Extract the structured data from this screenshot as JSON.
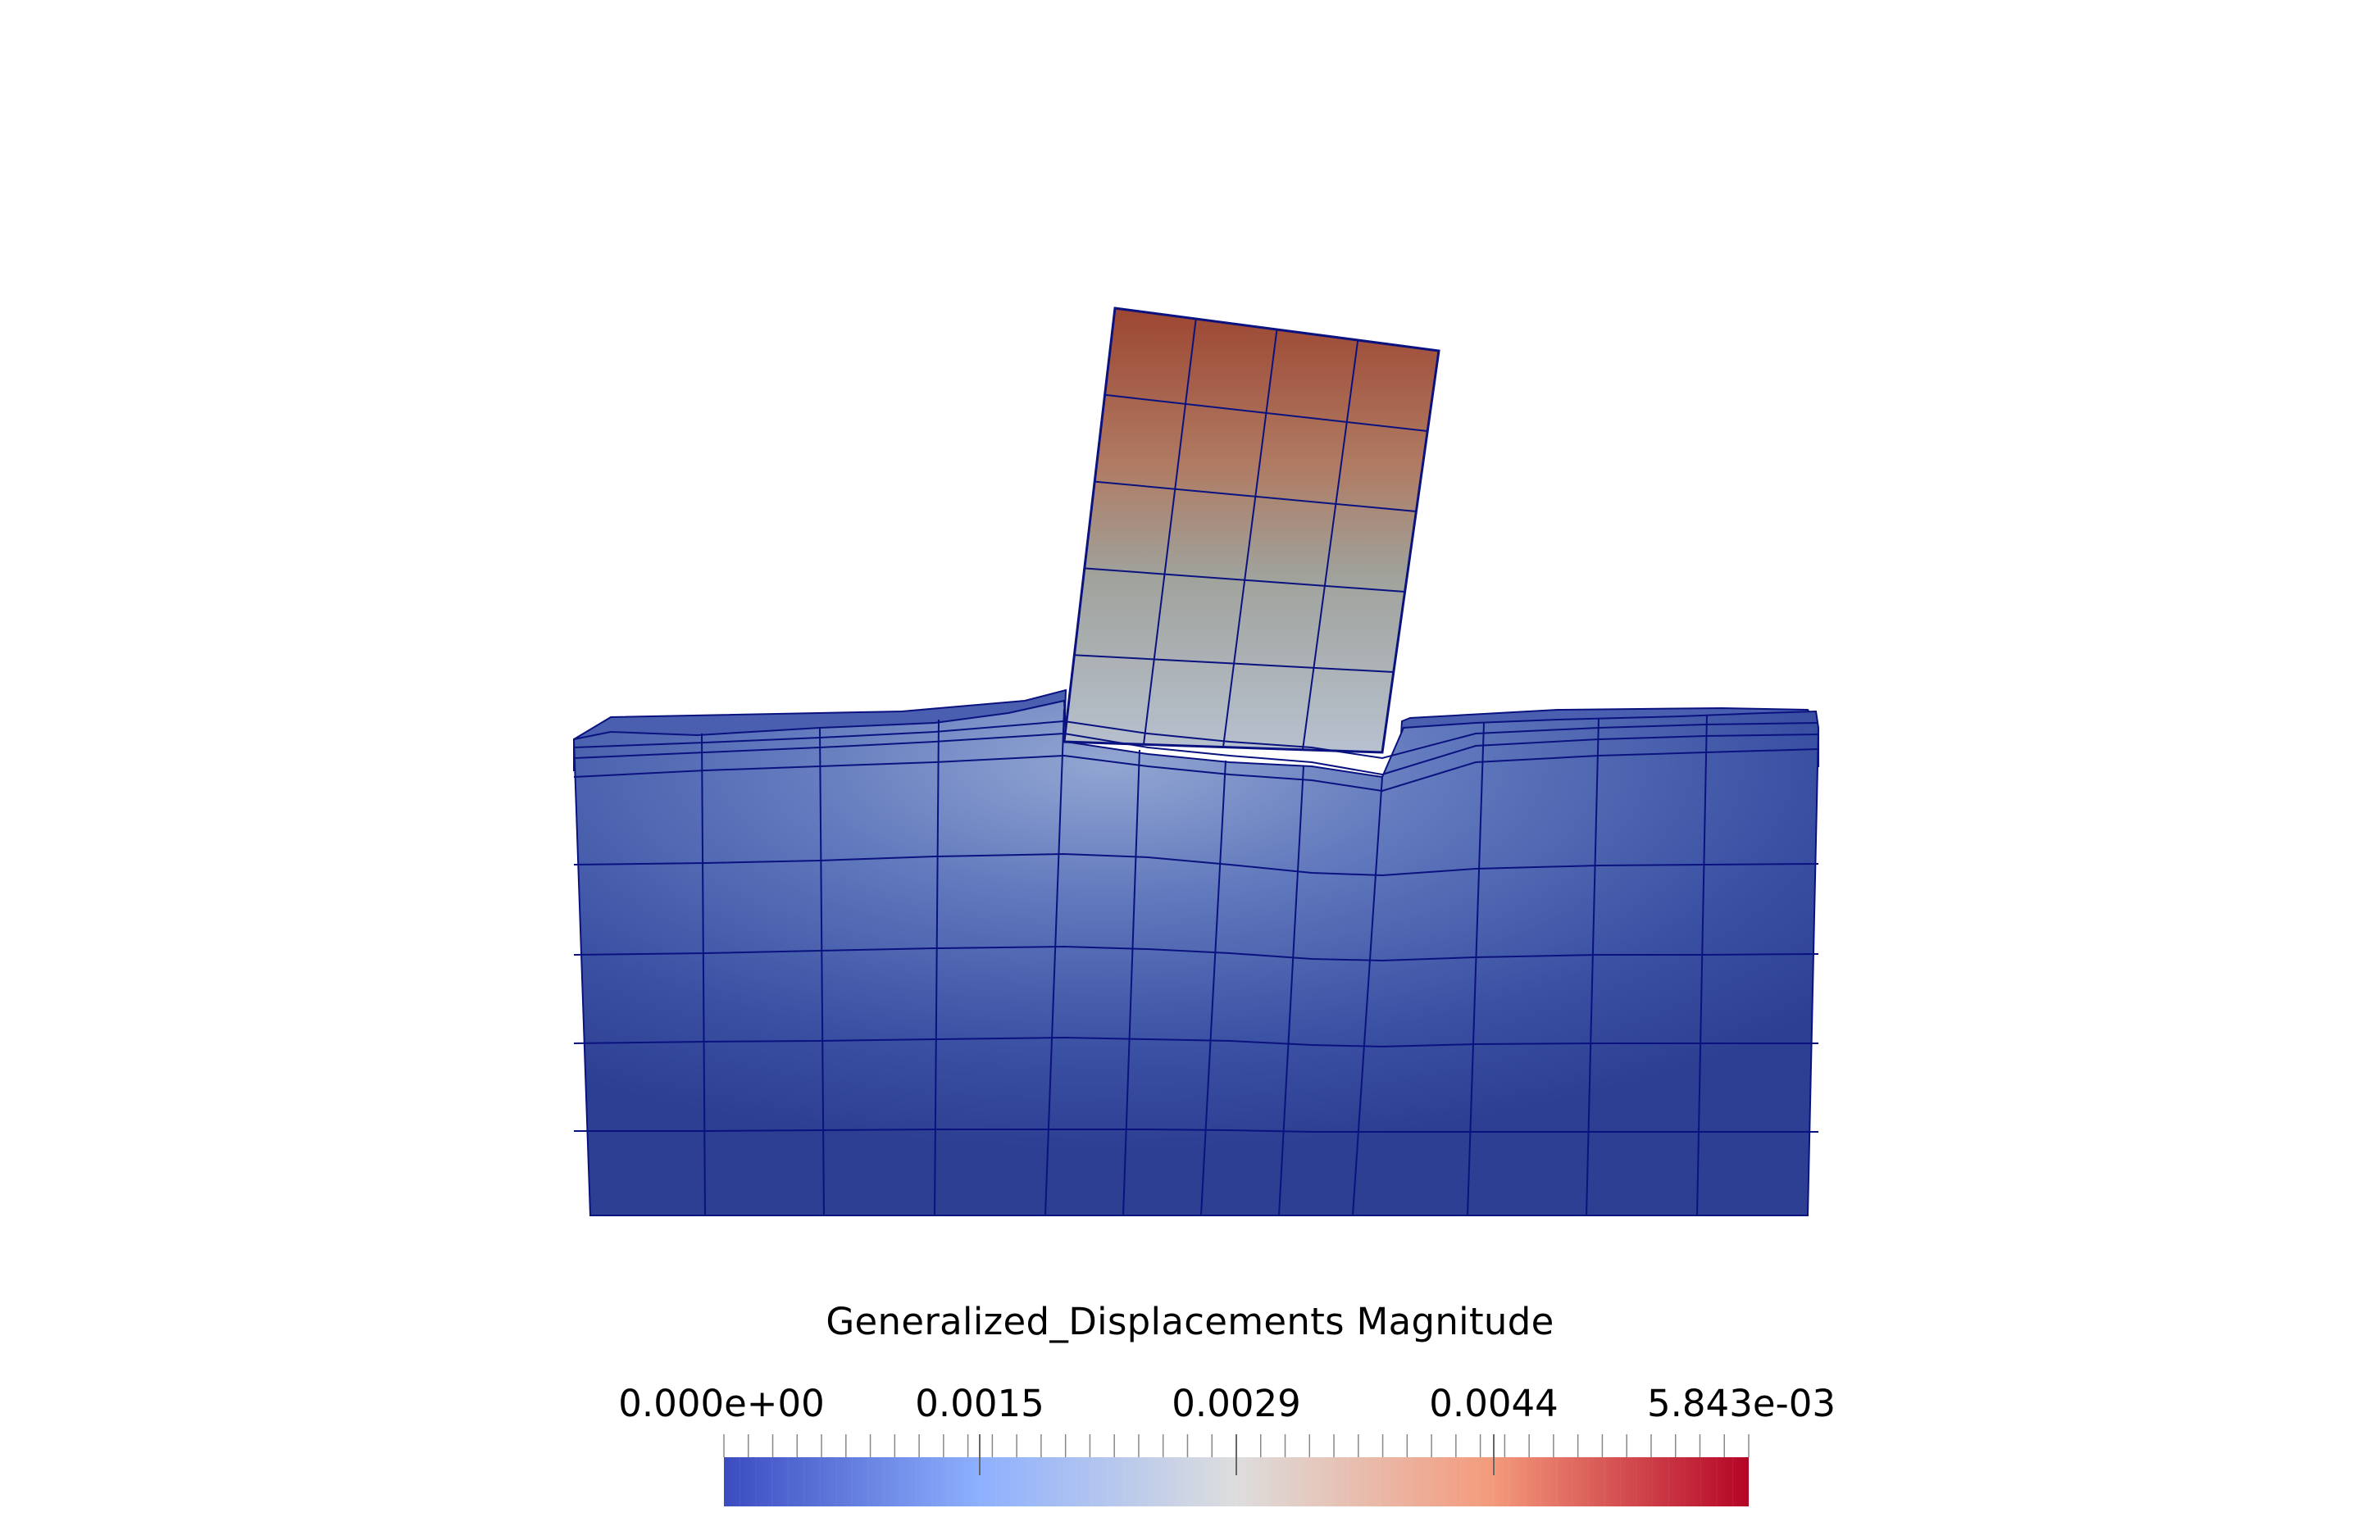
{
  "scalar_bar": {
    "title": "Generalized_Displacements Magnitude",
    "labels": [
      "0.000e+00",
      "0.0015",
      "0.0029",
      "0.0044",
      "5.843e-03"
    ],
    "range": [
      0.0,
      0.005843
    ],
    "colormap": [
      "#3b4cc0",
      "#8db0fe",
      "#dddddd",
      "#f49a7b",
      "#b40426"
    ]
  },
  "colors": {
    "foundation_dark": "#2d3f93",
    "foundation_light": "#7d93c9",
    "column_top": "#9c4632",
    "column_mid": "#a0a29b",
    "column_bottom": "#b7c1cf",
    "mesh_line": "#0a1280"
  }
}
